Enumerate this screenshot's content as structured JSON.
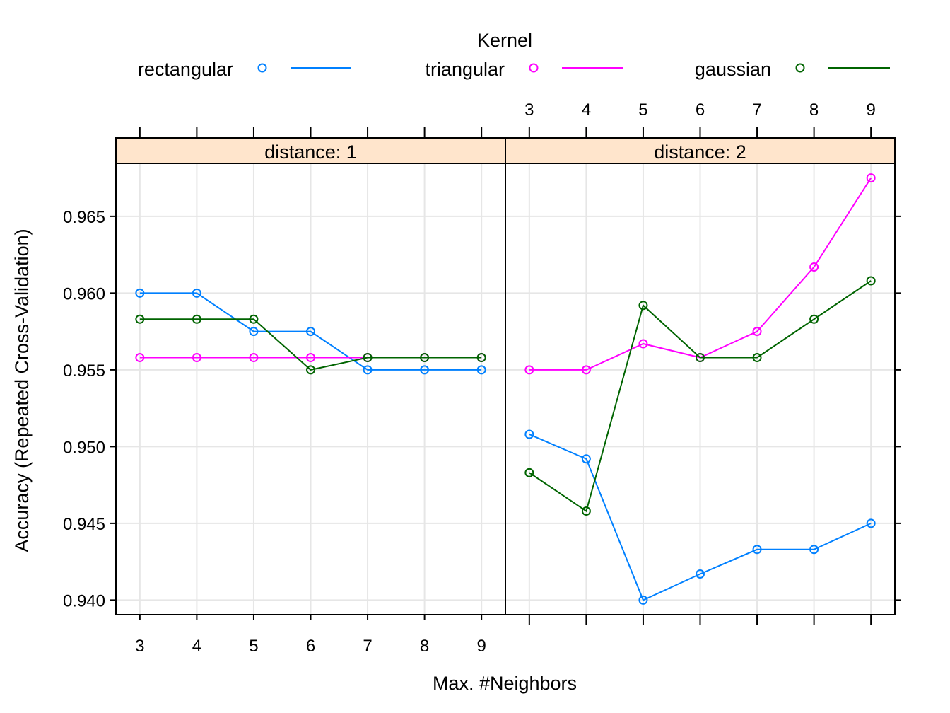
{
  "chart_data": {
    "type": "line",
    "xlabel": "Max. #Neighbors",
    "ylabel": "Accuracy (Repeated Cross-Validation)",
    "legend": {
      "title": "Kernel",
      "placement": "top"
    },
    "x": [
      3,
      4,
      5,
      6,
      7,
      8,
      9
    ],
    "xlim": [
      2.58,
      9.42
    ],
    "ylim": [
      0.93905,
      0.96845
    ],
    "yticks": [
      0.94,
      0.945,
      0.95,
      0.955,
      0.96,
      0.965
    ],
    "ytick_labels": [
      "0.940",
      "0.945",
      "0.950",
      "0.955",
      "0.960",
      "0.965"
    ],
    "xtick_labels": [
      "3",
      "4",
      "5",
      "6",
      "7",
      "8",
      "9"
    ],
    "grid": true,
    "strip_color": "#ffe5cc",
    "panels": [
      {
        "strip": "distance: 1",
        "series": [
          {
            "name": "rectangular",
            "color": "#0080ff",
            "values": [
              0.96,
              0.96,
              0.9575,
              0.9575,
              0.955,
              0.955,
              0.955
            ]
          },
          {
            "name": "triangular",
            "color": "#ff00ff",
            "values": [
              0.9558,
              0.9558,
              0.9558,
              0.9558,
              0.9558,
              0.9558,
              0.9558
            ]
          },
          {
            "name": "gaussian",
            "color": "#006400",
            "values": [
              0.9583,
              0.9583,
              0.9583,
              0.955,
              0.9558,
              0.9558,
              0.9558
            ]
          }
        ]
      },
      {
        "strip": "distance: 2",
        "series": [
          {
            "name": "rectangular",
            "color": "#0080ff",
            "values": [
              0.9508,
              0.9492,
              0.94,
              0.9417,
              0.9433,
              0.9433,
              0.945
            ]
          },
          {
            "name": "triangular",
            "color": "#ff00ff",
            "values": [
              0.955,
              0.955,
              0.9567,
              0.9558,
              0.9575,
              0.9617,
              0.9675
            ]
          },
          {
            "name": "gaussian",
            "color": "#006400",
            "values": [
              0.9483,
              0.9458,
              0.9592,
              0.9558,
              0.9558,
              0.9583,
              0.9608
            ]
          }
        ]
      }
    ]
  }
}
